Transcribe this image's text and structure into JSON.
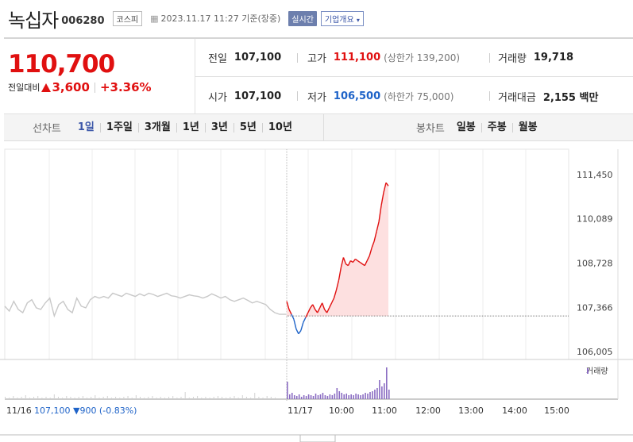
{
  "header": {
    "name": "녹십자",
    "code": "006280",
    "market": "코스피",
    "date": "2023.11.17 11:27 기준(장중)",
    "realtime_label": "실시간",
    "company_label": "기업개요"
  },
  "summary": {
    "price": "110,700",
    "diff_label": "전일대비",
    "diff_value": "3,600",
    "diff_pct": "+3.36%",
    "prev_close": {
      "label": "전일",
      "value": "107,100"
    },
    "high": {
      "label": "고가",
      "value": "111,100",
      "sub": "(상한가 139,200)"
    },
    "volume": {
      "label": "거래량",
      "value": "19,718"
    },
    "open": {
      "label": "시가",
      "value": "107,100"
    },
    "low": {
      "label": "저가",
      "value": "106,500",
      "sub": "(하한가 75,000)"
    },
    "amount": {
      "label": "거래대금",
      "value": "2,155 백만"
    }
  },
  "tabs": {
    "line_label": "선차트",
    "line": [
      "1일",
      "1주일",
      "3개월",
      "1년",
      "3년",
      "5년",
      "10년"
    ],
    "candle_label": "봉차트",
    "candle": [
      "일봉",
      "주봉",
      "월봉"
    ]
  },
  "colors": {
    "up": "#e01010",
    "down": "#1e63c8",
    "accent": "#3b56a8",
    "volume": "#8a6cc2"
  },
  "chart_data": {
    "type": "line",
    "y_ticks": [
      "111,450",
      "110,089",
      "108,728",
      "107,366",
      "106,005"
    ],
    "ylim": [
      106005,
      111450
    ],
    "prev_close": 107100,
    "x_ticks": [
      "11/17",
      "10:00",
      "11:00",
      "12:00",
      "13:00",
      "14:00",
      "15:00"
    ],
    "prev_day_label": "11/16",
    "prev_day_info": "107,100 ▼900 (-0.83%)",
    "volume_legend": "거래량",
    "prev_day_series": [
      107400,
      107250,
      107550,
      107300,
      107200,
      107500,
      107600,
      107350,
      107300,
      107500,
      107650,
      107100,
      107450,
      107550,
      107300,
      107200,
      107650,
      107400,
      107350,
      107600,
      107700,
      107650,
      107700,
      107650,
      107800,
      107750,
      107700,
      107800,
      107750,
      107700,
      107780,
      107720,
      107800,
      107760,
      107700,
      107750,
      107800,
      107720,
      107700,
      107650,
      107700,
      107750,
      107720,
      107700,
      107650,
      107700,
      107780,
      107720,
      107650,
      107700,
      107600,
      107550,
      107600,
      107650,
      107580,
      107500,
      107550,
      107500,
      107450,
      107300,
      107200
    ],
    "today_series": [
      107550,
      107300,
      107150,
      107000,
      106700,
      106550,
      106650,
      106900,
      107050,
      107200,
      107350,
      107450,
      107300,
      107200,
      107350,
      107500,
      107300,
      107200,
      107350,
      107500,
      107650,
      107900,
      108200,
      108600,
      108900,
      108700,
      108650,
      108800,
      108750,
      108850,
      108800,
      108750,
      108700,
      108650,
      108800,
      108950,
      109200,
      109400,
      109700,
      110000,
      110500,
      110900,
      111200,
      111100
    ]
  }
}
